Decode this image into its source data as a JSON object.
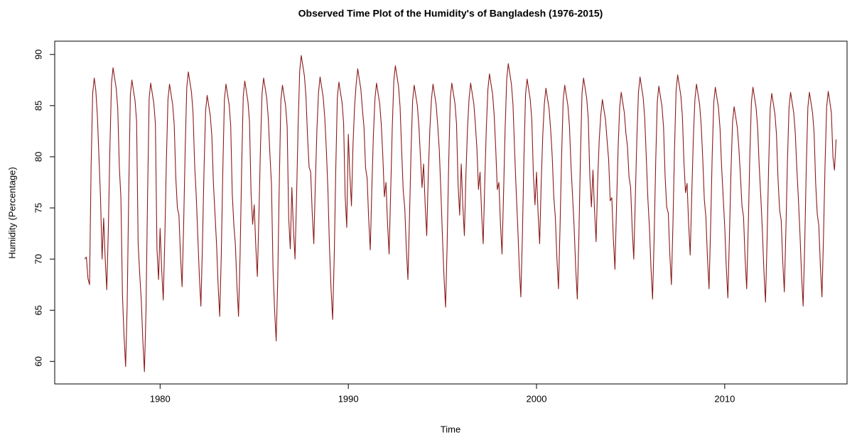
{
  "chart_data": {
    "type": "line",
    "title": "Observed Time Plot of the Humidity's of Bangladesh (1976-2015)",
    "x_label": "Time",
    "y_label": "Humidity (Percentage)",
    "color": "#8b1a1a",
    "xlim": [
      1974.4,
      2016.5
    ],
    "ylim": [
      57.8,
      91.3
    ],
    "xticks": [
      1980,
      1990,
      2000,
      2010
    ],
    "yticks": [
      60,
      65,
      70,
      75,
      80,
      85,
      90
    ],
    "x": [
      1976,
      1976.083,
      1976.167,
      1976.25,
      1976.333,
      1976.417,
      1976.5,
      1976.583,
      1976.667,
      1976.75,
      1976.833,
      1976.917,
      1977,
      1977.083,
      1977.167,
      1977.25,
      1977.333,
      1977.417,
      1977.5,
      1977.583,
      1977.667,
      1977.75,
      1977.833,
      1977.917,
      1978,
      1978.083,
      1978.167,
      1978.25,
      1978.333,
      1978.417,
      1978.5,
      1978.583,
      1978.667,
      1978.75,
      1978.833,
      1978.917,
      1979,
      1979.083,
      1979.167,
      1979.25,
      1979.333,
      1979.417,
      1979.5,
      1979.583,
      1979.667,
      1979.75,
      1979.833,
      1979.917,
      1980,
      1980.083,
      1980.167,
      1980.25,
      1980.333,
      1980.417,
      1980.5,
      1980.583,
      1980.667,
      1980.75,
      1980.833,
      1980.917,
      1981,
      1981.083,
      1981.167,
      1981.25,
      1981.333,
      1981.417,
      1981.5,
      1981.583,
      1981.667,
      1981.75,
      1981.833,
      1981.917,
      1982,
      1982.083,
      1982.167,
      1982.25,
      1982.333,
      1982.417,
      1982.5,
      1982.583,
      1982.667,
      1982.75,
      1982.833,
      1982.917,
      1983,
      1983.083,
      1983.167,
      1983.25,
      1983.333,
      1983.417,
      1983.5,
      1983.583,
      1983.667,
      1983.75,
      1983.833,
      1983.917,
      1984,
      1984.083,
      1984.167,
      1984.25,
      1984.333,
      1984.417,
      1984.5,
      1984.583,
      1984.667,
      1984.75,
      1984.833,
      1984.917,
      1985,
      1985.083,
      1985.167,
      1985.25,
      1985.333,
      1985.417,
      1985.5,
      1985.583,
      1985.667,
      1985.75,
      1985.833,
      1985.917,
      1986,
      1986.083,
      1986.167,
      1986.25,
      1986.333,
      1986.417,
      1986.5,
      1986.583,
      1986.667,
      1986.75,
      1986.833,
      1986.917,
      1987,
      1987.083,
      1987.167,
      1987.25,
      1987.333,
      1987.417,
      1987.5,
      1987.583,
      1987.667,
      1987.75,
      1987.833,
      1987.917,
      1988,
      1988.083,
      1988.167,
      1988.25,
      1988.333,
      1988.417,
      1988.5,
      1988.583,
      1988.667,
      1988.75,
      1988.833,
      1988.917,
      1989,
      1989.083,
      1989.167,
      1989.25,
      1989.333,
      1989.417,
      1989.5,
      1989.583,
      1989.667,
      1989.75,
      1989.833,
      1989.917,
      1990,
      1990.083,
      1990.167,
      1990.25,
      1990.333,
      1990.417,
      1990.5,
      1990.583,
      1990.667,
      1990.75,
      1990.833,
      1990.917,
      1991,
      1991.083,
      1991.167,
      1991.25,
      1991.333,
      1991.417,
      1991.5,
      1991.583,
      1991.667,
      1991.75,
      1991.833,
      1991.917,
      1992,
      1992.083,
      1992.167,
      1992.25,
      1992.333,
      1992.417,
      1992.5,
      1992.583,
      1992.667,
      1992.75,
      1992.833,
      1992.917,
      1993,
      1993.083,
      1993.167,
      1993.25,
      1993.333,
      1993.417,
      1993.5,
      1993.583,
      1993.667,
      1993.75,
      1993.833,
      1993.917,
      1994,
      1994.083,
      1994.167,
      1994.25,
      1994.333,
      1994.417,
      1994.5,
      1994.583,
      1994.667,
      1994.75,
      1994.833,
      1994.917,
      1995,
      1995.083,
      1995.167,
      1995.25,
      1995.333,
      1995.417,
      1995.5,
      1995.583,
      1995.667,
      1995.75,
      1995.833,
      1995.917,
      1996,
      1996.083,
      1996.167,
      1996.25,
      1996.333,
      1996.417,
      1996.5,
      1996.583,
      1996.667,
      1996.75,
      1996.833,
      1996.917,
      1997,
      1997.083,
      1997.167,
      1997.25,
      1997.333,
      1997.417,
      1997.5,
      1997.583,
      1997.667,
      1997.75,
      1997.833,
      1997.917,
      1998,
      1998.083,
      1998.167,
      1998.25,
      1998.333,
      1998.417,
      1998.5,
      1998.583,
      1998.667,
      1998.75,
      1998.833,
      1998.917,
      1999,
      1999.083,
      1999.167,
      1999.25,
      1999.333,
      1999.417,
      1999.5,
      1999.583,
      1999.667,
      1999.75,
      1999.833,
      1999.917,
      2000,
      2000.083,
      2000.167,
      2000.25,
      2000.333,
      2000.417,
      2000.5,
      2000.583,
      2000.667,
      2000.75,
      2000.833,
      2000.917,
      2001,
      2001.083,
      2001.167,
      2001.25,
      2001.333,
      2001.417,
      2001.5,
      2001.583,
      2001.667,
      2001.75,
      2001.833,
      2001.917,
      2002,
      2002.083,
      2002.167,
      2002.25,
      2002.333,
      2002.417,
      2002.5,
      2002.583,
      2002.667,
      2002.75,
      2002.833,
      2002.917,
      2003,
      2003.083,
      2003.167,
      2003.25,
      2003.333,
      2003.417,
      2003.5,
      2003.583,
      2003.667,
      2003.75,
      2003.833,
      2003.917,
      2004,
      2004.083,
      2004.167,
      2004.25,
      2004.333,
      2004.417,
      2004.5,
      2004.583,
      2004.667,
      2004.75,
      2004.833,
      2004.917,
      2005,
      2005.083,
      2005.167,
      2005.25,
      2005.333,
      2005.417,
      2005.5,
      2005.583,
      2005.667,
      2005.75,
      2005.833,
      2005.917,
      2006,
      2006.083,
      2006.167,
      2006.25,
      2006.333,
      2006.417,
      2006.5,
      2006.583,
      2006.667,
      2006.75,
      2006.833,
      2006.917,
      2007,
      2007.083,
      2007.167,
      2007.25,
      2007.333,
      2007.417,
      2007.5,
      2007.583,
      2007.667,
      2007.75,
      2007.833,
      2007.917,
      2008,
      2008.083,
      2008.167,
      2008.25,
      2008.333,
      2008.417,
      2008.5,
      2008.583,
      2008.667,
      2008.75,
      2008.833,
      2008.917,
      2009,
      2009.083,
      2009.167,
      2009.25,
      2009.333,
      2009.417,
      2009.5,
      2009.583,
      2009.667,
      2009.75,
      2009.833,
      2009.917,
      2010,
      2010.083,
      2010.167,
      2010.25,
      2010.333,
      2010.417,
      2010.5,
      2010.583,
      2010.667,
      2010.75,
      2010.833,
      2010.917,
      2011,
      2011.083,
      2011.167,
      2011.25,
      2011.333,
      2011.417,
      2011.5,
      2011.583,
      2011.667,
      2011.75,
      2011.833,
      2011.917,
      2012,
      2012.083,
      2012.167,
      2012.25,
      2012.333,
      2012.417,
      2012.5,
      2012.583,
      2012.667,
      2012.75,
      2012.833,
      2012.917,
      2013,
      2013.083,
      2013.167,
      2013.25,
      2013.333,
      2013.417,
      2013.5,
      2013.583,
      2013.667,
      2013.75,
      2013.833,
      2013.917,
      2014,
      2014.083,
      2014.167,
      2014.25,
      2014.333,
      2014.417,
      2014.5,
      2014.583,
      2014.667,
      2014.75,
      2014.833,
      2014.917,
      2015,
      2015.083,
      2015.167,
      2015.25,
      2015.333,
      2015.417,
      2015.5,
      2015.583,
      2015.667,
      2015.75,
      2015.833,
      2015.917
    ],
    "values": [
      70.0,
      70.2,
      68.1,
      67.5,
      79.0,
      86.2,
      87.7,
      86.5,
      84.0,
      80.0,
      76.0,
      70.0,
      74.0,
      70.0,
      67.0,
      73.0,
      80.9,
      87.2,
      88.7,
      87.7,
      86.7,
      84.7,
      79.0,
      76.0,
      66.5,
      62.5,
      59.5,
      65.5,
      76.5,
      86.0,
      87.5,
      86.5,
      85.5,
      83.5,
      71.5,
      68.5,
      66.0,
      62.0,
      59.0,
      65.0,
      76.1,
      85.7,
      87.2,
      86.2,
      85.2,
      83.2,
      71.0,
      68.0,
      73.0,
      69.0,
      66.0,
      72.0,
      79.6,
      85.6,
      87.1,
      86.1,
      85.1,
      83.1,
      78.0,
      75.0,
      74.3,
      70.3,
      67.3,
      73.3,
      80.8,
      86.8,
      88.3,
      87.3,
      86.3,
      84.3,
      79.3,
      76.3,
      72.4,
      68.4,
      65.4,
      71.4,
      78.7,
      84.5,
      86.0,
      85.0,
      84.0,
      82.0,
      77.4,
      74.4,
      71.4,
      67.4,
      64.4,
      70.4,
      78.8,
      85.6,
      87.1,
      86.1,
      85.1,
      83.1,
      76.4,
      73.4,
      71.4,
      67.4,
      64.4,
      70.4,
      78.9,
      85.9,
      87.4,
      86.4,
      85.4,
      83.4,
      76.4,
      73.4,
      75.3,
      71.3,
      68.3,
      74.3,
      81.0,
      86.2,
      87.7,
      86.7,
      85.7,
      83.7,
      80.3,
      77.3,
      69.0,
      65.0,
      62.0,
      68.0,
      77.5,
      85.5,
      87.0,
      86.0,
      85.0,
      83.0,
      74.0,
      71.0,
      77.0,
      73.0,
      70.0,
      76.0,
      83.0,
      88.4,
      89.9,
      88.9,
      87.9,
      85.9,
      82.0,
      79.0,
      78.5,
      74.5,
      71.5,
      77.5,
      82.7,
      86.3,
      87.8,
      86.8,
      85.8,
      83.8,
      80.7,
      76.7,
      71.1,
      67.1,
      64.1,
      70.1,
      78.7,
      85.8,
      87.3,
      86.3,
      85.3,
      83.3,
      76.1,
      73.1,
      82.2,
      78.2,
      75.2,
      81.2,
      84.9,
      87.1,
      88.6,
      87.6,
      86.6,
      84.6,
      82.9,
      78.9,
      77.9,
      73.9,
      70.9,
      76.9,
      82.1,
      85.7,
      87.2,
      86.2,
      85.2,
      83.2,
      80.1,
      76.1,
      77.5,
      73.5,
      70.5,
      76.5,
      82.7,
      87.4,
      88.9,
      87.9,
      86.9,
      84.9,
      80.7,
      76.7,
      75.0,
      71.0,
      68.0,
      74.0,
      80.5,
      85.5,
      87.0,
      86.0,
      85.0,
      83.0,
      80.0,
      77.0,
      79.3,
      75.3,
      72.3,
      78.3,
      82.7,
      85.6,
      87.1,
      86.1,
      85.1,
      83.1,
      80.7,
      76.7,
      72.3,
      68.3,
      65.3,
      71.3,
      79.3,
      85.7,
      87.2,
      86.2,
      85.2,
      83.2,
      77.3,
      74.3,
      79.3,
      75.3,
      72.3,
      78.3,
      82.8,
      85.7,
      87.2,
      86.2,
      85.2,
      83.2,
      80.8,
      76.8,
      78.5,
      74.5,
      71.5,
      77.5,
      82.8,
      86.6,
      88.1,
      87.1,
      86.1,
      84.1,
      80.8,
      76.8,
      77.5,
      73.5,
      70.5,
      76.5,
      82.8,
      87.6,
      89.1,
      88.1,
      87.1,
      85.1,
      80.8,
      76.8,
      73.3,
      69.3,
      66.3,
      72.3,
      80.0,
      86.1,
      87.6,
      86.6,
      85.6,
      83.6,
      78.3,
      75.3,
      78.5,
      74.5,
      71.5,
      77.5,
      82.1,
      85.2,
      86.7,
      85.7,
      84.7,
      82.7,
      80.1,
      76.1,
      74.1,
      70.1,
      67.1,
      73.1,
      80.1,
      85.5,
      87.0,
      86.0,
      85.0,
      83.0,
      79.1,
      76.1,
      73.1,
      69.1,
      66.1,
      72.1,
      79.9,
      86.2,
      87.7,
      86.7,
      85.7,
      83.7,
      78.1,
      75.1,
      78.7,
      74.7,
      71.7,
      77.7,
      81.7,
      84.1,
      85.6,
      84.6,
      83.6,
      81.6,
      79.7,
      75.7,
      76.0,
      72.0,
      69.0,
      75.0,
      80.7,
      84.8,
      86.3,
      85.3,
      84.3,
      82.3,
      81.0,
      78.0,
      77.0,
      73.0,
      70.0,
      76.0,
      81.9,
      86.3,
      87.8,
      86.8,
      85.8,
      83.8,
      79.9,
      75.9,
      73.1,
      69.1,
      66.1,
      72.1,
      79.5,
      85.4,
      86.9,
      85.9,
      84.9,
      82.9,
      78.1,
      75.1,
      74.5,
      70.5,
      67.5,
      73.5,
      80.8,
      86.5,
      88.0,
      87.0,
      86.0,
      84.0,
      79.5,
      76.5,
      77.4,
      73.4,
      70.4,
      76.4,
      81.8,
      85.6,
      87.1,
      86.1,
      85.1,
      83.1,
      79.8,
      75.8,
      74.1,
      70.1,
      67.1,
      73.1,
      80.0,
      85.3,
      86.8,
      85.8,
      84.8,
      82.8,
      79.1,
      76.1,
      73.2,
      69.2,
      66.2,
      72.2,
      78.6,
      83.4,
      84.9,
      83.9,
      82.9,
      80.9,
      78.2,
      75.2,
      74.1,
      70.1,
      67.1,
      73.1,
      80.0,
      85.3,
      86.8,
      85.8,
      84.8,
      82.8,
      79.1,
      76.1,
      72.8,
      68.8,
      65.8,
      71.8,
      79.0,
      84.7,
      86.2,
      85.2,
      84.2,
      82.2,
      77.8,
      74.8,
      73.8,
      69.8,
      66.8,
      72.8,
      79.6,
      84.8,
      86.3,
      85.3,
      84.3,
      82.3,
      78.8,
      75.8,
      72.4,
      68.4,
      65.4,
      71.4,
      78.9,
      84.8,
      86.3,
      85.3,
      84.3,
      82.3,
      77.4,
      74.4,
      73.3,
      69.3,
      66.3,
      72.3,
      79.4,
      84.9,
      86.4,
      85.4,
      84.3,
      80.0,
      78.7,
      81.7
    ]
  }
}
